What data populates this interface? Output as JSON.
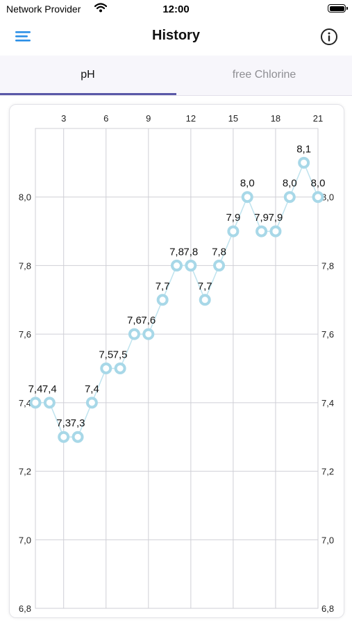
{
  "status_bar": {
    "carrier": "Network Provider",
    "time": "12:00"
  },
  "nav": {
    "title": "History"
  },
  "tabs": [
    {
      "label": "pH",
      "active": true
    },
    {
      "label": "free Chlorine",
      "active": false
    }
  ],
  "colors": {
    "accent": "#5a58a8",
    "point": "#a8d8e8",
    "line": "#bfe3ee",
    "grid": "#cfcfd6"
  },
  "chart_data": {
    "type": "line",
    "title": "",
    "xlabel": "",
    "ylabel": "",
    "x": [
      1,
      2,
      3,
      4,
      5,
      6,
      7,
      8,
      9,
      10,
      11,
      12,
      13,
      14,
      15,
      16,
      17,
      18,
      19,
      20,
      21
    ],
    "values": [
      7.4,
      7.4,
      7.3,
      7.3,
      7.4,
      7.5,
      7.5,
      7.6,
      7.6,
      7.7,
      7.8,
      7.8,
      7.7,
      7.8,
      7.9,
      8.0,
      7.9,
      7.9,
      8.0,
      8.1,
      8.0
    ],
    "data_labels": [
      "7,4",
      "7,4",
      "7,3",
      "7,3",
      "7,4",
      "7,5",
      "7,5",
      "7,6",
      "7,6",
      "7,7",
      "7,8",
      "7,8",
      "7,7",
      "7,8",
      "7,9",
      "8,0",
      "7,9",
      "7,9",
      "8,0",
      "8,1",
      "8,0"
    ],
    "xlim": [
      1,
      21
    ],
    "ylim": [
      6.8,
      8.2
    ],
    "x_ticks": [
      3,
      6,
      9,
      12,
      15,
      18,
      21
    ],
    "x_tick_labels": [
      "3",
      "6",
      "9",
      "12",
      "15",
      "18",
      "21"
    ],
    "y_ticks": [
      6.8,
      7.0,
      7.2,
      7.4,
      7.6,
      7.8,
      8.0
    ],
    "y_tick_labels": [
      "6,8",
      "7,0",
      "7,2",
      "7,4",
      "7,6",
      "7,8",
      "8,0"
    ],
    "x_axis_position": "top",
    "y_axis_position": "both",
    "grid": true,
    "legend": false
  }
}
